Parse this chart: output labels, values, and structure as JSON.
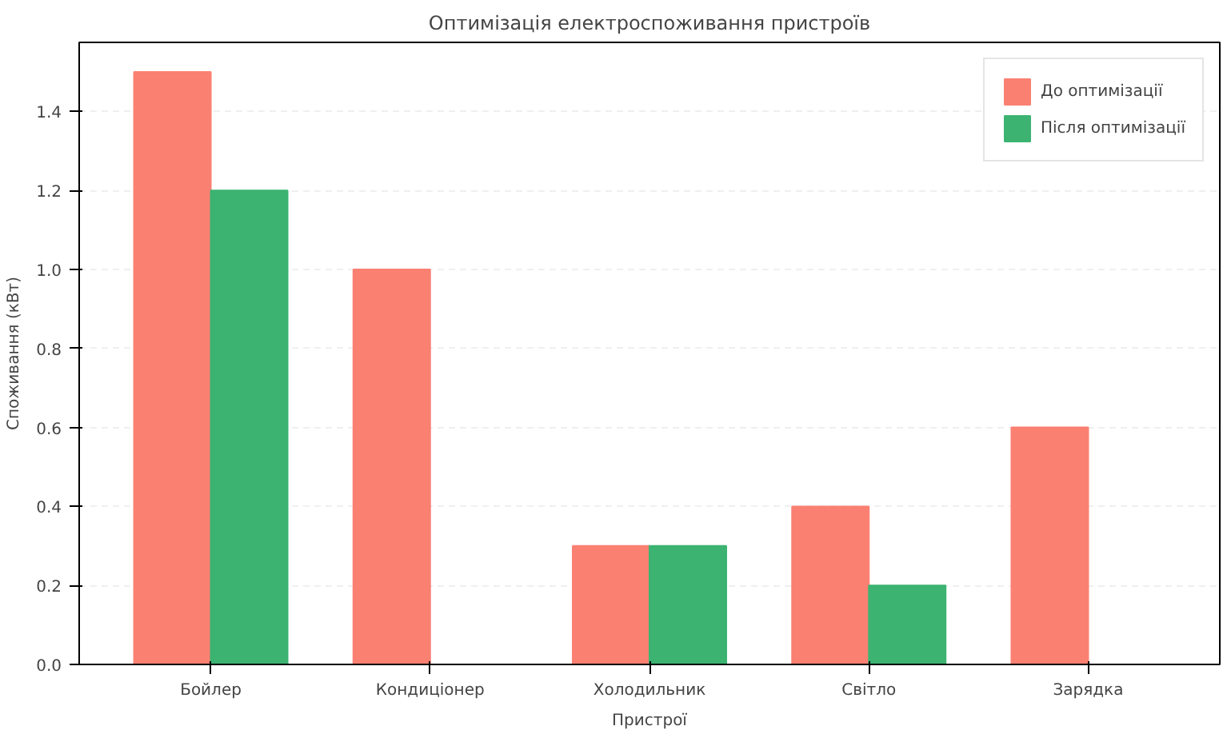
{
  "chart_data": {
    "type": "bar",
    "title": "Оптимізація електроспоживання пристроїв",
    "xlabel": "Пристрої",
    "ylabel": "Споживання (кВт)",
    "categories": [
      "Бойлер",
      "Кондиціонер",
      "Холодильник",
      "Світло",
      "Зарядка"
    ],
    "series": [
      {
        "name": "До оптимізації",
        "color": "#fa8072",
        "values": [
          1.5,
          1.0,
          0.3,
          0.4,
          0.6
        ]
      },
      {
        "name": "Після оптимізації",
        "color": "#3cb371",
        "values": [
          1.2,
          0,
          0.3,
          0.2,
          0
        ]
      }
    ],
    "ylim": [
      0,
      1.575
    ],
    "yticks": [
      {
        "value": 0,
        "label": "0.0"
      },
      0.2,
      0.4,
      0.6,
      0.8,
      {
        "value": 1,
        "label": "1.0"
      },
      1.2,
      1.4
    ],
    "grid": "y",
    "legend": "top right"
  }
}
